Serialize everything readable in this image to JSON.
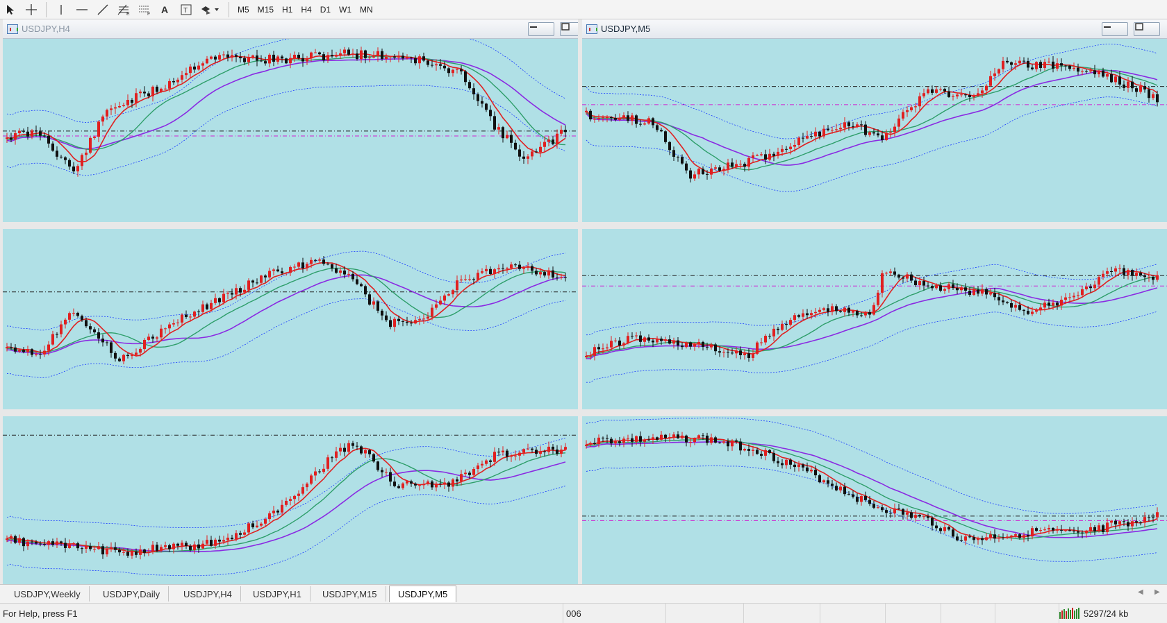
{
  "toolbar": {
    "timeframes": [
      "M5",
      "M15",
      "H1",
      "H4",
      "D1",
      "W1",
      "MN"
    ]
  },
  "windows": [
    {
      "title": "USDJPY,H4",
      "active": false
    },
    {
      "title": "USDJPY,M5",
      "active": true
    }
  ],
  "tabs": [
    {
      "label": "USDJPY,Weekly",
      "active": false
    },
    {
      "label": "USDJPY,Daily",
      "active": false
    },
    {
      "label": "USDJPY,H4",
      "active": false
    },
    {
      "label": "USDJPY,H1",
      "active": false
    },
    {
      "label": "USDJPY,M15",
      "active": false
    },
    {
      "label": "USDJPY,M5",
      "active": true
    }
  ],
  "status": {
    "help": "For Help, press F1",
    "profile": "006",
    "traffic": "5297/24 kb"
  },
  "colors": {
    "chart_background": "#b0e0e6",
    "bull_candle": "#e02020",
    "bear_candle": "#111111",
    "ma_fast": "#e02020",
    "ma_mid": "#2e9e6a",
    "ma_slow": "#8a2be2",
    "envelope": "#1a3cff",
    "level_line": "#222222",
    "level_line_alt": "#d020d0"
  },
  "icons": [
    "cursor-arrow-icon",
    "crosshair-icon",
    "vertical-line-icon",
    "horizontal-line-icon",
    "trendline-icon",
    "fibonacci-icon",
    "grid-icon",
    "text-icon",
    "text-label-icon",
    "shapes-dropdown-icon"
  ]
}
